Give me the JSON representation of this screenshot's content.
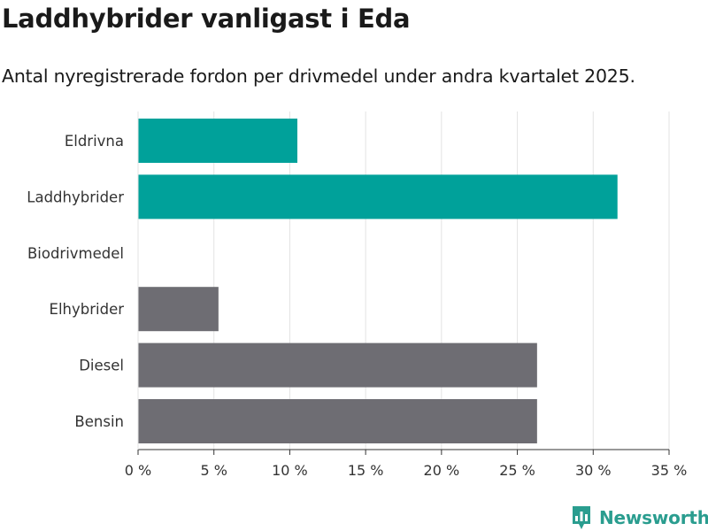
{
  "chart_data": {
    "type": "bar",
    "orientation": "horizontal",
    "title": "Laddhybrider vanligast i Eda",
    "subtitle": "Antal nyregistrerade fordon per drivmedel under andra kvartalet 2025.",
    "categories": [
      "Eldrivna",
      "Laddhybrider",
      "Biodrivmedel",
      "Elhybrider",
      "Diesel",
      "Bensin"
    ],
    "values": [
      10.5,
      31.6,
      0,
      5.3,
      26.3,
      26.3
    ],
    "colors": [
      "#00a19a",
      "#00a19a",
      "#6e6d73",
      "#6e6d73",
      "#6e6d73",
      "#6e6d73"
    ],
    "xlim": [
      0,
      35
    ],
    "xticks": [
      0,
      5,
      10,
      15,
      20,
      25,
      30,
      35
    ],
    "xtick_labels": [
      "0 %",
      "5 %",
      "10 %",
      "15 %",
      "20 %",
      "25 %",
      "30 %",
      "35 %"
    ],
    "grid": true,
    "legend": "none"
  },
  "branding": {
    "logo_text": "Newsworthy",
    "logo_color": "#2a9d8f",
    "icon": "bar-chart-pin-icon"
  }
}
